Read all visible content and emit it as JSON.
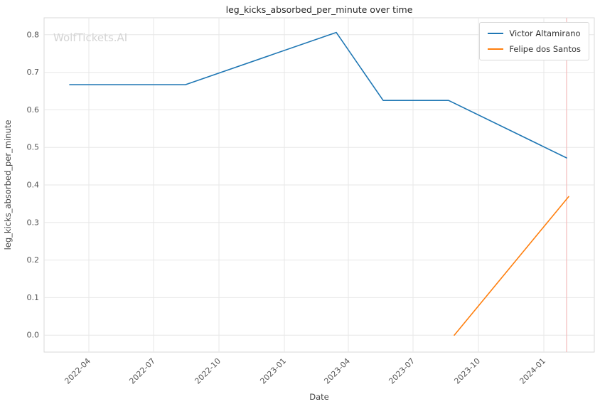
{
  "watermark": "WolfTickets.AI",
  "chart_data": {
    "type": "line",
    "title": "leg_kicks_absorbed_per_minute over time",
    "xlabel": "Date",
    "ylabel": "leg_kicks_absorbed_per_minute",
    "x_ticks": [
      "2022-04",
      "2022-07",
      "2022-10",
      "2023-01",
      "2023-04",
      "2023-07",
      "2023-10",
      "2024-01"
    ],
    "x_tick_rotation": 45,
    "y_ticks": [
      0.0,
      0.1,
      0.2,
      0.3,
      0.4,
      0.5,
      0.6,
      0.7,
      0.8
    ],
    "xlim": [
      "2022-01-28",
      "2024-03-12"
    ],
    "ylim": [
      -0.045,
      0.845
    ],
    "grid": true,
    "legend_position": "top-right",
    "series": [
      {
        "name": "Victor Altamirano",
        "color": "#1f77b4",
        "points": [
          [
            "2022-03-05",
            0.667
          ],
          [
            "2022-08-15",
            0.667
          ],
          [
            "2023-03-15",
            0.806
          ],
          [
            "2023-05-20",
            0.625
          ],
          [
            "2023-08-20",
            0.625
          ],
          [
            "2024-02-02",
            0.472
          ]
        ]
      },
      {
        "name": "Felipe dos Santos",
        "color": "#ff7f0e",
        "points": [
          [
            "2023-08-28",
            0.0
          ],
          [
            "2024-02-05",
            0.369
          ]
        ]
      }
    ],
    "marker_vline": {
      "x": "2024-02-02",
      "color": "#f3bcbc"
    }
  }
}
